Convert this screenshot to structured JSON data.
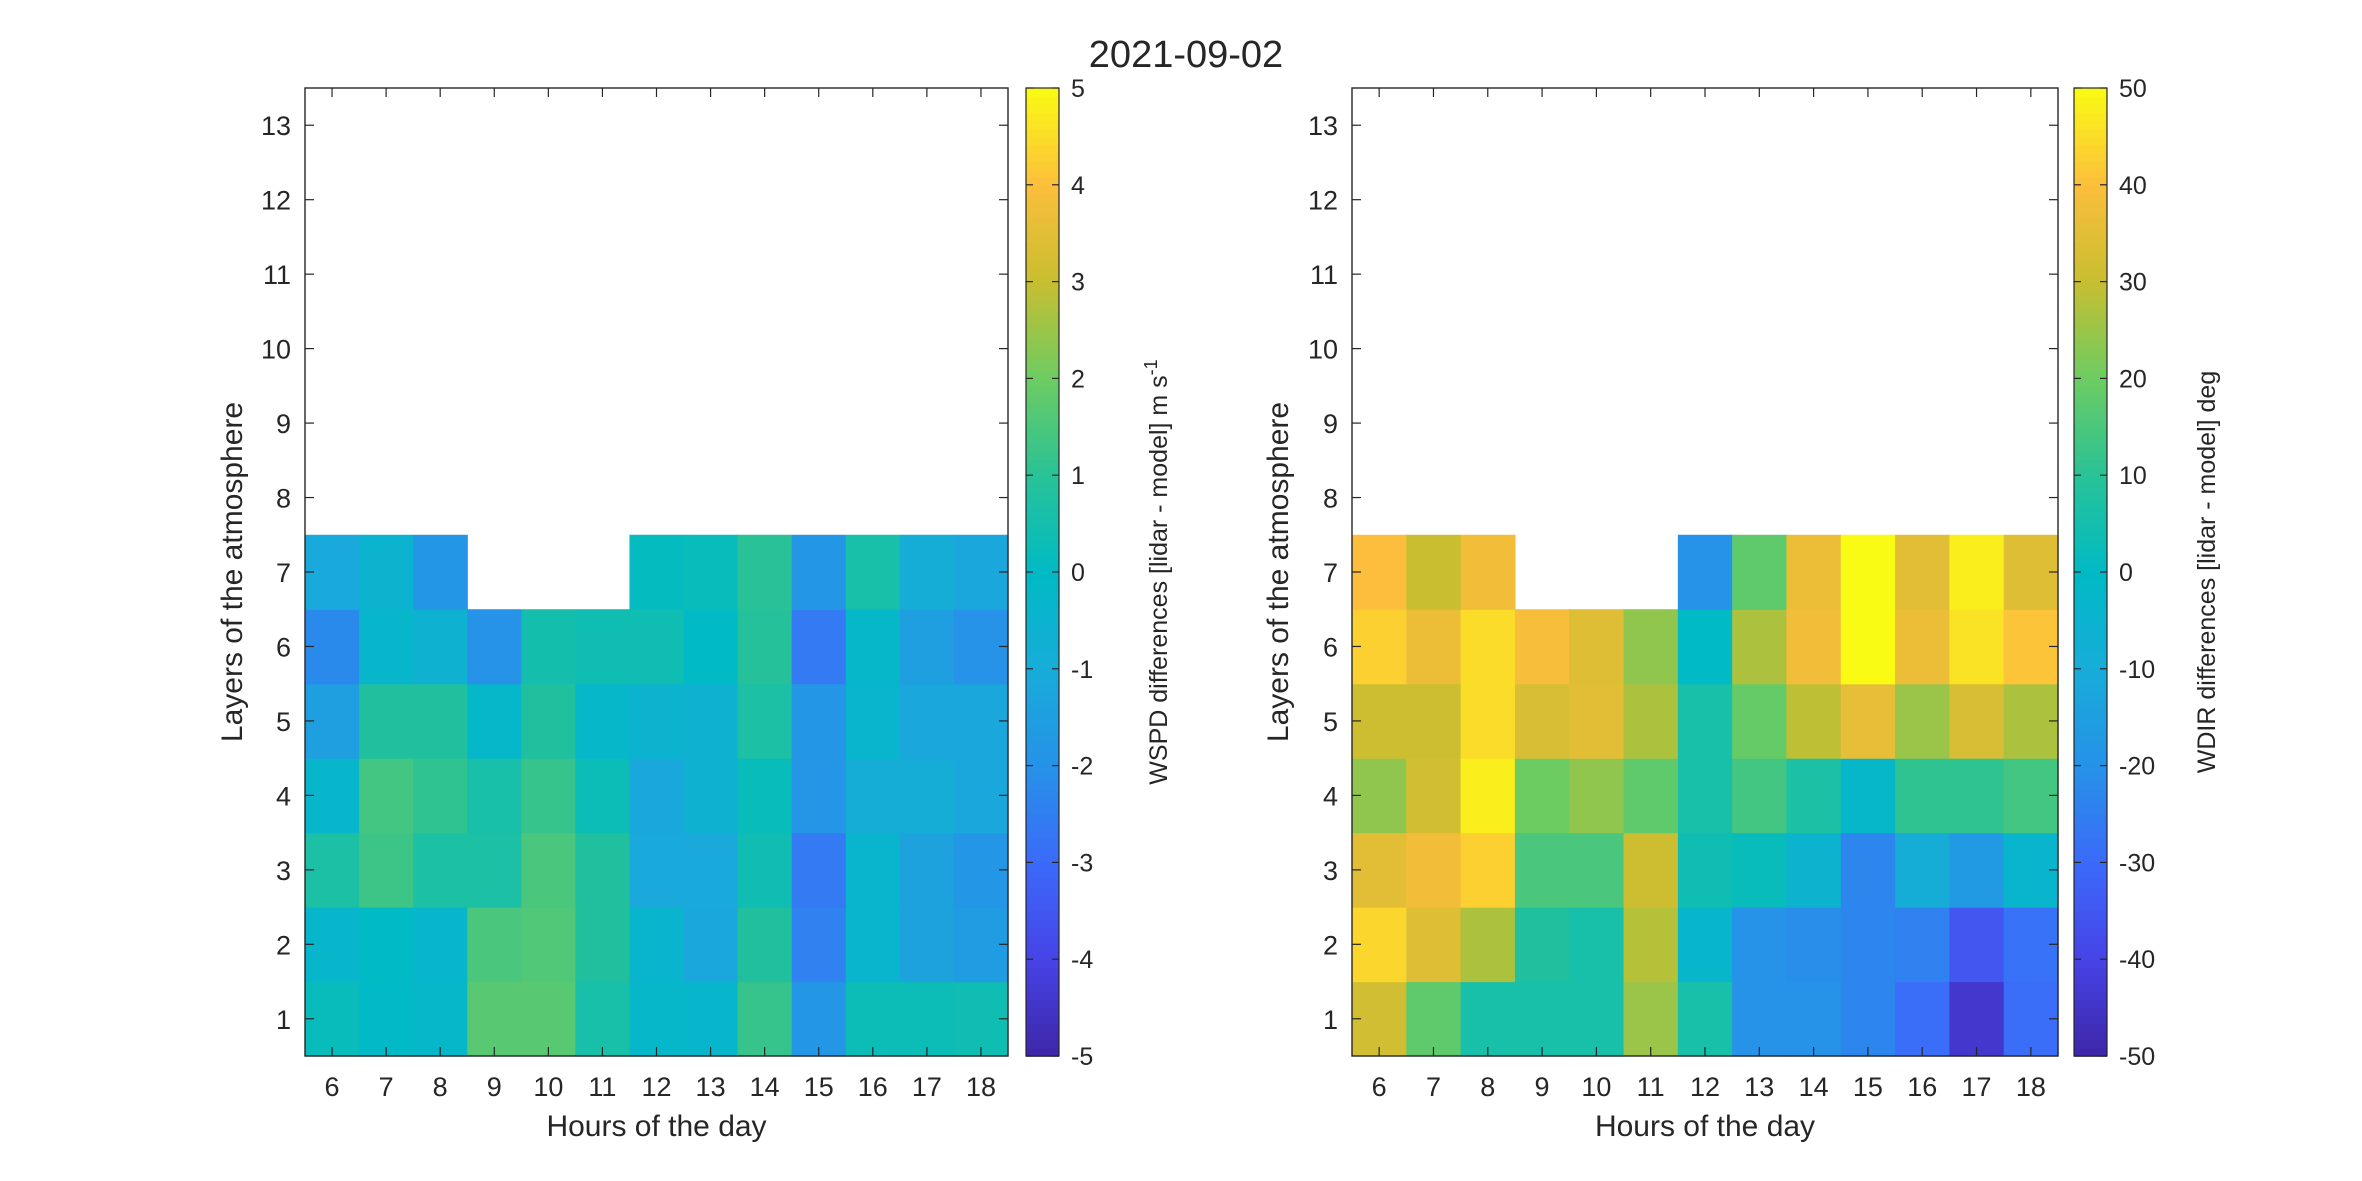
{
  "figure": {
    "title": "2021-09-02"
  },
  "chart_data": [
    {
      "type": "heatmap",
      "x": [
        6,
        7,
        8,
        9,
        10,
        11,
        12,
        13,
        14,
        15,
        16,
        17,
        18
      ],
      "y": [
        1,
        2,
        3,
        4,
        5,
        6,
        7,
        8,
        9,
        10,
        11,
        12,
        13
      ],
      "xlabel": "Hours of the day",
      "ylabel": "Layers of the atmosphere",
      "xlim": [
        5.5,
        18.5
      ],
      "ylim": [
        0.5,
        13.5
      ],
      "colorbar": {
        "label_main": "WSPD differences [lidar - model] m s",
        "label_sup": "-1",
        "range": [
          -5,
          5
        ],
        "ticks": [
          -5,
          -4,
          -3,
          -2,
          -1,
          0,
          1,
          2,
          3,
          4,
          5
        ]
      },
      "z": [
        [
          0.2,
          -0.1,
          -0.2,
          1.7,
          1.7,
          0.6,
          -0.2,
          -0.3,
          1.2,
          -1.8,
          0.3,
          0.3,
          0.4
        ],
        [
          -0.3,
          0.0,
          -0.3,
          1.5,
          1.6,
          0.8,
          -0.4,
          -1.2,
          0.8,
          -2.4,
          -0.4,
          -1.4,
          -1.6
        ],
        [
          0.7,
          1.3,
          0.7,
          0.7,
          1.5,
          0.8,
          -1.1,
          -1.1,
          0.4,
          -2.6,
          -0.4,
          -1.4,
          -1.8
        ],
        [
          -0.3,
          1.4,
          1.1,
          0.6,
          1.2,
          0.3,
          -1.2,
          -0.6,
          0.2,
          -1.9,
          -0.9,
          -0.9,
          -1.2
        ],
        [
          -1.5,
          0.8,
          0.8,
          -0.2,
          0.8,
          -0.2,
          -0.5,
          -0.6,
          0.7,
          -1.8,
          -0.4,
          -1.2,
          -1.2
        ],
        [
          -2.2,
          -0.3,
          -0.6,
          -2.0,
          0.5,
          0.4,
          0.4,
          0.0,
          0.9,
          -2.6,
          -0.2,
          -1.5,
          -2.0
        ],
        [
          -1.1,
          -0.5,
          -1.8,
          null,
          null,
          null,
          0.1,
          0.2,
          1.0,
          -1.8,
          0.6,
          -0.9,
          -1.2
        ],
        [
          null,
          null,
          null,
          null,
          null,
          null,
          null,
          null,
          null,
          null,
          null,
          null,
          null
        ],
        [
          null,
          null,
          null,
          null,
          null,
          null,
          null,
          null,
          null,
          null,
          null,
          null,
          null
        ],
        [
          null,
          null,
          null,
          null,
          null,
          null,
          null,
          null,
          null,
          null,
          null,
          null,
          null
        ],
        [
          null,
          null,
          null,
          null,
          null,
          null,
          null,
          null,
          null,
          null,
          null,
          null,
          null
        ],
        [
          null,
          null,
          null,
          null,
          null,
          null,
          null,
          null,
          null,
          null,
          null,
          null,
          null
        ],
        [
          null,
          null,
          null,
          null,
          null,
          null,
          null,
          null,
          null,
          null,
          null,
          null,
          null
        ]
      ]
    },
    {
      "type": "heatmap",
      "x": [
        6,
        7,
        8,
        9,
        10,
        11,
        12,
        13,
        14,
        15,
        16,
        17,
        18
      ],
      "y": [
        1,
        2,
        3,
        4,
        5,
        6,
        7,
        8,
        9,
        10,
        11,
        12,
        13
      ],
      "xlabel": "Hours of the day",
      "ylabel": "Layers of the atmosphere",
      "xlim": [
        5.5,
        18.5
      ],
      "ylim": [
        0.5,
        13.5
      ],
      "colorbar": {
        "label_main": "WDIR differences [lidar - model] deg",
        "label_sup": "",
        "range": [
          -50,
          50
        ],
        "ticks": [
          -50,
          -40,
          -30,
          -20,
          -10,
          0,
          10,
          20,
          30,
          40,
          50
        ]
      },
      "z": [
        [
          32,
          18,
          6,
          6,
          6,
          25,
          6,
          -20,
          -20,
          -23,
          -29,
          -44,
          -29
        ],
        [
          44,
          34,
          27,
          8,
          6,
          28,
          -3,
          -20,
          -21,
          -23,
          -24,
          -35,
          -28
        ],
        [
          35,
          38,
          43,
          15,
          15,
          31,
          4,
          2,
          -5,
          -23,
          -9,
          -17,
          -4
        ],
        [
          24,
          32,
          48,
          20,
          24,
          18,
          6,
          14,
          7,
          -2,
          11,
          11,
          14
        ],
        [
          31,
          31,
          45,
          33,
          35,
          27,
          6,
          19,
          29,
          36,
          25,
          33,
          27
        ],
        [
          43,
          37,
          45,
          39,
          34,
          24,
          0,
          27,
          38,
          50,
          37,
          46,
          41
        ],
        [
          40,
          30,
          38,
          null,
          null,
          null,
          -20,
          18,
          37,
          50,
          35,
          48,
          34
        ],
        [
          null,
          null,
          null,
          null,
          null,
          null,
          null,
          null,
          null,
          null,
          null,
          null,
          null
        ],
        [
          null,
          null,
          null,
          null,
          null,
          null,
          null,
          null,
          null,
          null,
          null,
          null,
          null
        ],
        [
          null,
          null,
          null,
          null,
          null,
          null,
          null,
          null,
          null,
          null,
          null,
          null,
          null
        ],
        [
          null,
          null,
          null,
          null,
          null,
          null,
          null,
          null,
          null,
          null,
          null,
          null,
          null
        ],
        [
          null,
          null,
          null,
          null,
          null,
          null,
          null,
          null,
          null,
          null,
          null,
          null,
          null
        ],
        [
          null,
          null,
          null,
          null,
          null,
          null,
          null,
          null,
          null,
          null,
          null,
          null,
          null
        ]
      ]
    }
  ]
}
